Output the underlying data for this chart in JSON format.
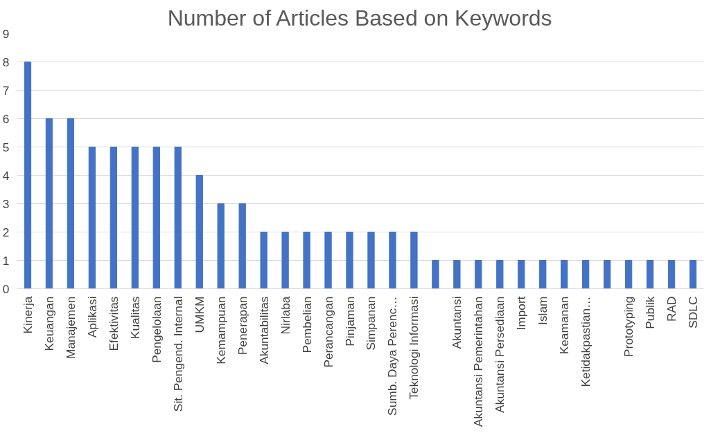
{
  "chart_data": {
    "type": "bar",
    "title": "Number of Articles Based on Keywords",
    "categories": [
      "Kinerja",
      "Keuangan",
      "Manajemen",
      "Aplikasi",
      "Efektivitas",
      "Kualitas",
      "Pengelolaan",
      "Sit. Pengend. Internal",
      "UMKM",
      "Kemampuan",
      "Penerapan",
      "Akuntabilitas",
      "Nirlaba",
      "Pembelian",
      "Perancangan",
      "Pinjaman",
      "Simpanan",
      "Sumb. Daya Perenc…",
      "Teknologi Informasi",
      null,
      "Akuntansi",
      "Akuntansi Pemerintahan",
      "Akuntansi Persediaan",
      "Import",
      "Islam",
      "Keamanan",
      "Ketidakpastian…",
      null,
      "Prototyping",
      "Publik",
      "RAD",
      "SDLC"
    ],
    "values": [
      8,
      6,
      6,
      5,
      5,
      5,
      5,
      5,
      4,
      3,
      3,
      2,
      2,
      2,
      2,
      2,
      2,
      2,
      2,
      1,
      1,
      1,
      1,
      1,
      1,
      1,
      1,
      1,
      1,
      1,
      1,
      1
    ],
    "color": "#4472c4",
    "ylim": [
      0,
      9
    ],
    "yticks": [
      0,
      1,
      2,
      3,
      4,
      5,
      6,
      7,
      8,
      9
    ],
    "grid": "y"
  }
}
